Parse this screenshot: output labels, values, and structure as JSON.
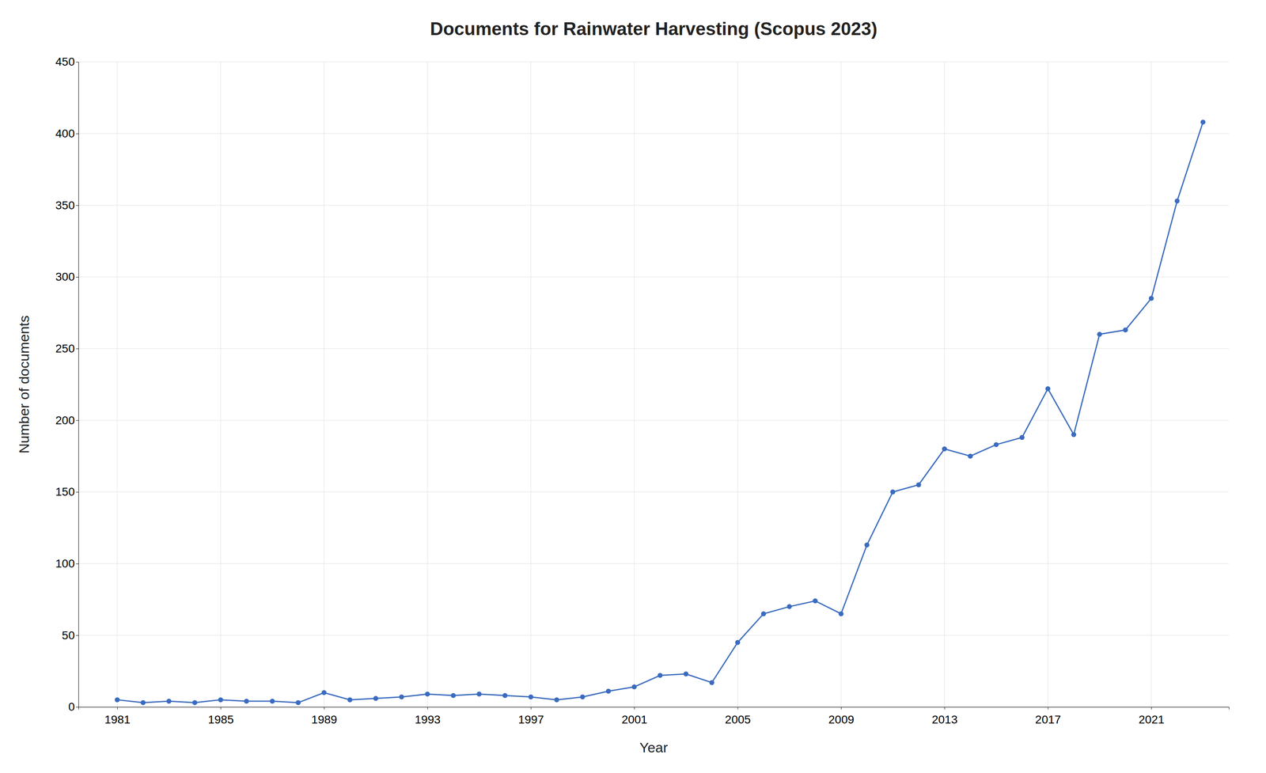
{
  "chart_data": {
    "type": "line",
    "title": "Documents for Rainwater Harvesting (Scopus 2023)",
    "xlabel": "Year",
    "ylabel": "Number of documents",
    "x": [
      1981,
      1982,
      1983,
      1984,
      1985,
      1986,
      1987,
      1988,
      1989,
      1990,
      1991,
      1992,
      1993,
      1994,
      1995,
      1996,
      1997,
      1998,
      1999,
      2000,
      2001,
      2002,
      2003,
      2004,
      2005,
      2006,
      2007,
      2008,
      2009,
      2010,
      2011,
      2012,
      2013,
      2014,
      2015,
      2016,
      2017,
      2018,
      2019,
      2020,
      2021,
      2022,
      2023
    ],
    "values": [
      5,
      3,
      4,
      3,
      5,
      4,
      4,
      3,
      10,
      5,
      6,
      7,
      9,
      8,
      9,
      8,
      7,
      5,
      7,
      11,
      14,
      22,
      23,
      17,
      45,
      65,
      70,
      74,
      65,
      113,
      150,
      155,
      180,
      175,
      183,
      188,
      222,
      190,
      260,
      263,
      285,
      353,
      408
    ],
    "color": "#3a6bbf",
    "marker": "circle",
    "xlim": [
      1979.5,
      2024
    ],
    "xticks": [
      1981,
      1985,
      1989,
      1993,
      1997,
      2001,
      2005,
      2009,
      2013,
      2017,
      2021
    ],
    "ylim": [
      0,
      450
    ],
    "yticks": [
      0,
      50,
      100,
      150,
      200,
      250,
      300,
      350,
      400,
      450
    ],
    "grid": true
  }
}
